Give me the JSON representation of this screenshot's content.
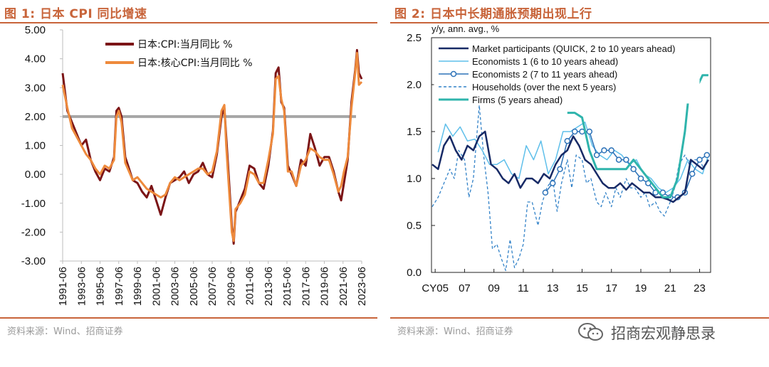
{
  "chart_data": [
    {
      "type": "line",
      "title": "图 1: 日本 CPI 同比增速",
      "source": "资料来源：Wind、招商证券",
      "ylim": [
        -3.0,
        5.0
      ],
      "yticks": [
        "5.00",
        "4.00",
        "3.00",
        "2.00",
        "1.00",
        "0.00",
        "-1.00",
        "-2.00",
        "-3.00"
      ],
      "xlim": [
        "1991-06",
        "2023-06"
      ],
      "xticks": [
        "1991-06",
        "1993-06",
        "1995-06",
        "1997-06",
        "1999-06",
        "2001-06",
        "2003-06",
        "2005-06",
        "2007-06",
        "2009-06",
        "2011-06",
        "2013-06",
        "2015-06",
        "2017-06",
        "2019-06",
        "2021-06",
        "2023-06"
      ],
      "reference_line": 2.0,
      "legend_position": "top-left",
      "grid": false,
      "colors": {
        "cpi": "#7b1416",
        "core": "#ee8a3c",
        "ref": "#a6a6a6"
      },
      "series": [
        {
          "name": "日本:CPI:当月同比 %",
          "x": [
            1991.5,
            1992.0,
            1992.5,
            1993.0,
            1993.5,
            1994.0,
            1994.5,
            1995.0,
            1995.5,
            1996.0,
            1996.5,
            1997.0,
            1997.25,
            1997.5,
            1997.8,
            1998.2,
            1998.6,
            1999.0,
            1999.5,
            2000.0,
            2000.5,
            2001.0,
            2001.5,
            2002.0,
            2002.5,
            2003.0,
            2003.5,
            2004.0,
            2004.5,
            2005.0,
            2005.5,
            2006.0,
            2006.5,
            2007.0,
            2007.5,
            2008.0,
            2008.5,
            2008.8,
            2009.0,
            2009.3,
            2009.6,
            2009.8,
            2010.0,
            2010.5,
            2011.0,
            2011.5,
            2012.0,
            2012.5,
            2013.0,
            2013.5,
            2014.0,
            2014.3,
            2014.6,
            2014.9,
            2015.2,
            2015.6,
            2016.0,
            2016.5,
            2017.0,
            2017.5,
            2018.0,
            2018.5,
            2019.0,
            2019.5,
            2020.0,
            2020.5,
            2021.0,
            2021.3,
            2021.6,
            2022.0,
            2022.4,
            2022.8,
            2023.0,
            2023.2,
            2023.5
          ],
          "y": [
            3.5,
            2.2,
            1.8,
            1.4,
            1.0,
            1.2,
            0.5,
            0.1,
            -0.2,
            0.2,
            0.1,
            0.6,
            2.2,
            2.3,
            2.0,
            0.6,
            0.2,
            -0.2,
            -0.3,
            -0.6,
            -0.8,
            -0.4,
            -0.9,
            -1.4,
            -0.8,
            -0.3,
            -0.2,
            -0.1,
            0.1,
            -0.3,
            0.0,
            0.1,
            0.4,
            0.0,
            -0.1,
            0.7,
            2.0,
            2.3,
            1.3,
            -0.2,
            -1.8,
            -2.4,
            -1.3,
            -0.9,
            -0.5,
            0.3,
            0.2,
            -0.3,
            -0.5,
            0.3,
            1.5,
            3.5,
            3.7,
            2.5,
            2.3,
            0.3,
            0.0,
            -0.4,
            0.5,
            0.3,
            1.4,
            0.9,
            0.3,
            0.6,
            0.6,
            0.1,
            -0.6,
            -0.9,
            -0.3,
            0.5,
            2.5,
            3.6,
            4.3,
            3.5,
            3.3
          ]
        },
        {
          "name": "日本:核心CPI:当月同比 %",
          "x": [
            1991.5,
            1992.0,
            1992.5,
            1993.0,
            1993.5,
            1994.0,
            1994.5,
            1995.0,
            1995.5,
            1996.0,
            1996.5,
            1997.0,
            1997.25,
            1997.5,
            1997.8,
            1998.2,
            1998.6,
            1999.0,
            1999.5,
            2000.0,
            2000.5,
            2001.0,
            2001.5,
            2002.0,
            2002.5,
            2003.0,
            2003.5,
            2004.0,
            2004.5,
            2005.0,
            2005.5,
            2006.0,
            2006.5,
            2007.0,
            2007.5,
            2008.0,
            2008.5,
            2008.8,
            2009.0,
            2009.3,
            2009.6,
            2009.8,
            2010.0,
            2010.5,
            2011.0,
            2011.5,
            2012.0,
            2012.5,
            2013.0,
            2013.5,
            2014.0,
            2014.3,
            2014.6,
            2014.9,
            2015.2,
            2015.6,
            2016.0,
            2016.5,
            2017.0,
            2017.5,
            2018.0,
            2018.5,
            2019.0,
            2019.5,
            2020.0,
            2020.5,
            2021.0,
            2021.3,
            2021.6,
            2022.0,
            2022.4,
            2022.8,
            2023.0,
            2023.2,
            2023.5
          ],
          "y": [
            3.1,
            2.3,
            1.6,
            1.3,
            1.0,
            0.7,
            0.5,
            0.2,
            0.0,
            0.3,
            0.2,
            0.5,
            2.0,
            2.2,
            1.8,
            0.4,
            0.1,
            -0.2,
            -0.1,
            -0.3,
            -0.5,
            -0.6,
            -0.7,
            -0.8,
            -0.7,
            -0.3,
            -0.1,
            -0.2,
            -0.1,
            0.0,
            0.1,
            0.2,
            0.2,
            0.0,
            0.1,
            0.8,
            2.2,
            2.4,
            1.0,
            -0.5,
            -2.0,
            -2.3,
            -1.2,
            -1.0,
            -0.7,
            0.1,
            0.0,
            -0.3,
            -0.3,
            0.5,
            1.4,
            3.3,
            3.4,
            2.6,
            2.2,
            0.1,
            0.1,
            -0.4,
            0.3,
            0.5,
            0.9,
            0.8,
            0.6,
            0.5,
            0.5,
            0.0,
            -0.6,
            -0.4,
            0.1,
            0.6,
            2.3,
            3.5,
            4.2,
            3.1,
            3.2
          ]
        }
      ]
    },
    {
      "type": "line",
      "title": "图 2: 日本中长期通胀预期出现上行",
      "source": "资料来源：Wind、招商证券",
      "ylabel": "y/y, ann. avg., %",
      "ylim": [
        0.0,
        2.5
      ],
      "yticks": [
        "2.5",
        "2.0",
        "1.5",
        "1.0",
        "0.5",
        "0.0"
      ],
      "xlim": [
        2004.75,
        2023.75
      ],
      "xticks": [
        "CY05",
        "07",
        "09",
        "11",
        "13",
        "15",
        "17",
        "19",
        "21",
        "23"
      ],
      "legend_position": "top-left",
      "grid": false,
      "colors": {
        "market": "#172a66",
        "econ1": "#5fbfea",
        "econ2": "#2c72b8",
        "households": "#3282c8",
        "firms": "#2fb4ac"
      },
      "series": [
        {
          "name": "Market participants (QUICK, 2 to 10 years ahead)",
          "style": "solid",
          "x": [
            2004.8,
            2005.2,
            2005.6,
            2006.0,
            2006.4,
            2006.8,
            2007.2,
            2007.6,
            2008.0,
            2008.4,
            2008.8,
            2009.2,
            2009.6,
            2010.0,
            2010.4,
            2010.8,
            2011.2,
            2011.6,
            2012.0,
            2012.4,
            2012.8,
            2013.2,
            2013.6,
            2014.0,
            2014.4,
            2014.8,
            2015.2,
            2015.6,
            2016.0,
            2016.4,
            2016.8,
            2017.2,
            2017.6,
            2018.0,
            2018.4,
            2018.8,
            2019.2,
            2019.6,
            2020.0,
            2020.4,
            2020.8,
            2021.2,
            2021.6,
            2022.0,
            2022.4,
            2022.8,
            2023.2,
            2023.6
          ],
          "y": [
            1.15,
            1.1,
            1.35,
            1.45,
            1.3,
            1.2,
            1.35,
            1.3,
            1.45,
            1.5,
            1.15,
            1.1,
            1.0,
            0.95,
            1.05,
            0.9,
            1.0,
            1.0,
            0.95,
            1.05,
            1.0,
            1.15,
            1.25,
            1.3,
            1.45,
            1.35,
            1.2,
            1.15,
            1.05,
            0.95,
            0.9,
            0.9,
            0.95,
            0.88,
            0.95,
            0.9,
            0.85,
            0.85,
            0.8,
            0.8,
            0.78,
            0.75,
            0.8,
            0.85,
            1.2,
            1.15,
            1.1,
            1.2
          ]
        },
        {
          "name": "Economists 1 (6 to 10 years ahead)",
          "style": "solid",
          "x": [
            2005.2,
            2005.7,
            2006.2,
            2006.7,
            2007.2,
            2007.7,
            2008.2,
            2008.7,
            2009.2,
            2009.7,
            2010.2,
            2010.7,
            2011.2,
            2011.7,
            2012.2,
            2012.7,
            2013.2,
            2013.7,
            2014.2,
            2014.7,
            2015.2,
            2015.7,
            2016.2,
            2016.7,
            2017.2,
            2017.7,
            2018.2,
            2018.7,
            2019.2,
            2019.7,
            2020.2,
            2020.7,
            2021.2,
            2021.7,
            2022.2,
            2022.7,
            2023.2,
            2023.6
          ],
          "y": [
            1.28,
            1.58,
            1.45,
            1.55,
            1.4,
            1.42,
            1.3,
            1.15,
            1.15,
            1.2,
            1.05,
            1.0,
            1.35,
            1.2,
            1.4,
            1.05,
            1.2,
            1.5,
            1.5,
            1.55,
            1.6,
            1.35,
            1.25,
            1.2,
            1.3,
            1.25,
            1.15,
            1.2,
            1.05,
            1.0,
            0.9,
            0.85,
            0.9,
            1.0,
            1.2,
            1.1,
            1.05,
            1.25
          ]
        },
        {
          "name": "Economists 2 (7 to 11 years ahead)",
          "style": "solid-marker",
          "x": [
            2012.5,
            2013.0,
            2013.5,
            2014.0,
            2014.5,
            2015.0,
            2015.5,
            2016.0,
            2016.5,
            2017.0,
            2017.5,
            2018.0,
            2018.5,
            2019.0,
            2019.5,
            2020.0,
            2020.5,
            2021.0,
            2021.5,
            2022.0,
            2022.5,
            2023.0,
            2023.5
          ],
          "y": [
            0.85,
            0.95,
            1.1,
            1.4,
            1.5,
            1.5,
            1.5,
            1.25,
            1.3,
            1.3,
            1.2,
            1.2,
            1.1,
            1.0,
            0.95,
            0.85,
            0.85,
            0.8,
            0.8,
            0.85,
            1.05,
            1.2,
            1.25
          ]
        },
        {
          "name": "Households (over the next 5 years)",
          "style": "dashed",
          "x": [
            2004.8,
            2005.2,
            2005.6,
            2006.0,
            2006.3,
            2006.6,
            2007.0,
            2007.3,
            2007.6,
            2008.0,
            2008.3,
            2008.6,
            2008.9,
            2009.2,
            2009.5,
            2009.8,
            2010.1,
            2010.4,
            2010.7,
            2011.0,
            2011.3,
            2011.6,
            2012.0,
            2012.3,
            2012.6,
            2013.0,
            2013.3,
            2013.6,
            2014.0,
            2014.3,
            2014.6,
            2015.0,
            2015.3,
            2015.6,
            2016.0,
            2016.3,
            2016.6,
            2017.0,
            2017.3,
            2017.6,
            2018.0,
            2018.3,
            2018.6,
            2019.0,
            2019.3,
            2019.6,
            2020.0,
            2020.3,
            2020.6,
            2021.0,
            2021.3,
            2021.6,
            2022.0,
            2022.3,
            2022.6,
            2023.0,
            2023.3,
            2023.6
          ],
          "y": [
            0.7,
            0.8,
            0.95,
            1.1,
            1.0,
            1.3,
            1.2,
            0.8,
            1.0,
            1.78,
            1.25,
            0.85,
            0.25,
            0.3,
            0.15,
            0.02,
            0.35,
            0.05,
            0.15,
            0.3,
            0.75,
            0.75,
            0.5,
            0.75,
            0.9,
            1.0,
            0.65,
            0.95,
            1.2,
            0.9,
            1.25,
            1.2,
            0.95,
            1.0,
            0.75,
            0.7,
            0.85,
            0.7,
            0.9,
            0.8,
            1.0,
            0.9,
            0.9,
            0.8,
            0.85,
            0.7,
            0.75,
            0.65,
            0.6,
            0.75,
            0.9,
            1.15,
            1.25,
            1.15,
            1.2,
            1.2,
            1.1,
            1.2
          ]
        },
        {
          "name": "Firms (5 years ahead)",
          "style": "solid-thick",
          "x": [
            2014.0,
            2014.5,
            2015.0,
            2015.5,
            2016.0,
            2016.5,
            2017.0,
            2017.5,
            2018.0,
            2018.5,
            2019.0,
            2019.5,
            2020.0,
            2020.5,
            2021.0,
            2021.5,
            2022.0,
            2022.3,
            2022.6,
            2022.9,
            2023.2,
            2023.6
          ],
          "y": [
            1.7,
            1.7,
            1.65,
            1.3,
            1.1,
            1.1,
            1.1,
            1.1,
            1.1,
            1.2,
            1.1,
            1.0,
            0.9,
            0.8,
            0.8,
            1.0,
            1.5,
            1.95,
            2.0,
            2.0,
            2.1,
            2.1
          ]
        }
      ]
    }
  ],
  "watermark": {
    "text": "招商宏观静思录",
    "icon": "wechat-icon"
  }
}
